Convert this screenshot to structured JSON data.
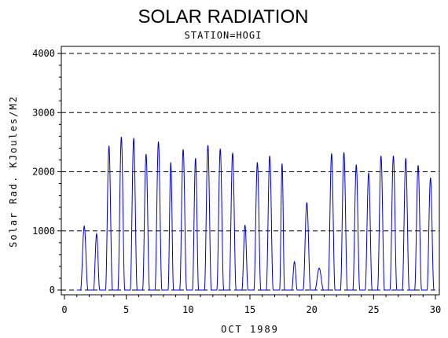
{
  "chart_data": {
    "type": "line",
    "title": "SOLAR RADIATION",
    "subtitle": "STATION=HOGI",
    "xlabel": "OCT 1989",
    "ylabel": "Solar Rad. KJoules/M2",
    "xlim": [
      0,
      30
    ],
    "ylim": [
      0,
      4000
    ],
    "x_ticks": [
      0,
      5,
      10,
      15,
      20,
      25,
      30
    ],
    "y_ticks": [
      0,
      1000,
      2000,
      3000,
      4000
    ],
    "grid": "dashed horizontal lines at y ticks",
    "series_color": "#0000cc",
    "daily_peaks": [
      {
        "x": 1.6,
        "y": 1080,
        "w": 0.3
      },
      {
        "x": 2.6,
        "y": 950,
        "w": 0.25
      },
      {
        "x": 3.6,
        "y": 2440,
        "w": 0.28
      },
      {
        "x": 4.6,
        "y": 2590,
        "w": 0.28
      },
      {
        "x": 5.6,
        "y": 2570,
        "w": 0.28
      },
      {
        "x": 6.6,
        "y": 2300,
        "w": 0.28
      },
      {
        "x": 7.6,
        "y": 2510,
        "w": 0.28
      },
      {
        "x": 8.6,
        "y": 2160,
        "w": 0.22
      },
      {
        "x": 9.6,
        "y": 2380,
        "w": 0.28
      },
      {
        "x": 10.6,
        "y": 2230,
        "w": 0.25
      },
      {
        "x": 11.6,
        "y": 2450,
        "w": 0.28
      },
      {
        "x": 12.6,
        "y": 2390,
        "w": 0.28
      },
      {
        "x": 13.6,
        "y": 2320,
        "w": 0.28
      },
      {
        "x": 14.6,
        "y": 1100,
        "w": 0.25
      },
      {
        "x": 15.6,
        "y": 2160,
        "w": 0.28
      },
      {
        "x": 16.6,
        "y": 2270,
        "w": 0.28
      },
      {
        "x": 17.6,
        "y": 2140,
        "w": 0.2
      },
      {
        "x": 18.6,
        "y": 480,
        "w": 0.22
      },
      {
        "x": 19.6,
        "y": 1480,
        "w": 0.3
      },
      {
        "x": 20.6,
        "y": 370,
        "w": 0.35
      },
      {
        "x": 21.6,
        "y": 2310,
        "w": 0.28
      },
      {
        "x": 22.6,
        "y": 2330,
        "w": 0.28
      },
      {
        "x": 23.6,
        "y": 2120,
        "w": 0.28
      },
      {
        "x": 24.6,
        "y": 1980,
        "w": 0.28
      },
      {
        "x": 25.6,
        "y": 2270,
        "w": 0.28
      },
      {
        "x": 26.6,
        "y": 2270,
        "w": 0.28
      },
      {
        "x": 27.6,
        "y": 2230,
        "w": 0.28
      },
      {
        "x": 28.6,
        "y": 2110,
        "w": 0.28
      },
      {
        "x": 29.6,
        "y": 1900,
        "w": 0.28
      }
    ]
  }
}
